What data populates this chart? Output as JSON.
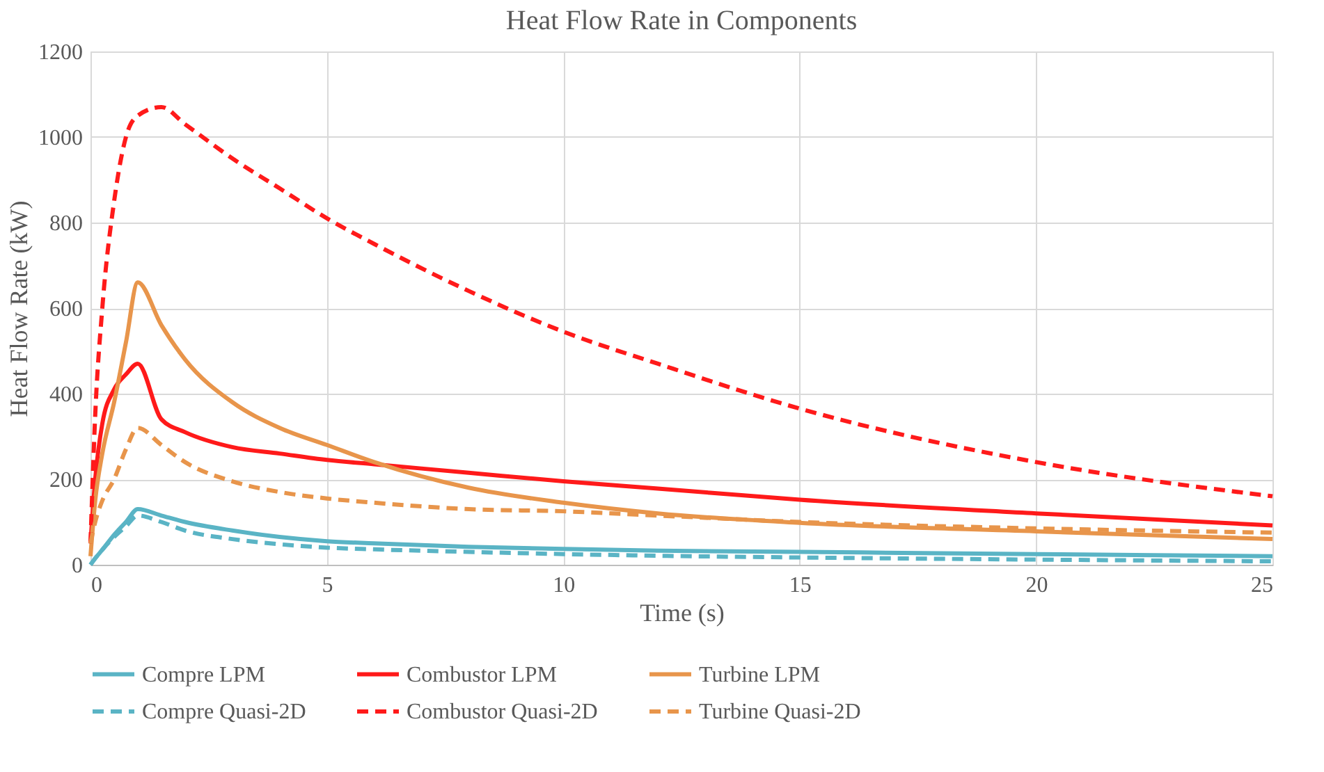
{
  "chart_data": {
    "type": "line",
    "title": "Heat Flow Rate in Components",
    "xlabel": "Time (s)",
    "ylabel": "Heat Flow Rate (kW)",
    "x": [
      0,
      0.1,
      0.25,
      0.5,
      0.75,
      1,
      1.5,
      2,
      3,
      4,
      5,
      6,
      8,
      10,
      12,
      15,
      20,
      25
    ],
    "xlim": [
      0,
      25
    ],
    "xticks": [
      0,
      5,
      10,
      15,
      20,
      25
    ],
    "ylim": [
      0,
      1200
    ],
    "yticks": [
      0,
      200,
      400,
      600,
      800,
      1000,
      1200
    ],
    "grid": true,
    "legend": "bottom",
    "marker": "none",
    "series": [
      {
        "name": "Compre LPM",
        "color": "#5ab4c5",
        "line_style": "solid",
        "values": [
          0,
          15,
          35,
          70,
          100,
          130,
          115,
          100,
          80,
          65,
          55,
          50,
          42,
          37,
          33,
          30,
          25,
          20
        ]
      },
      {
        "name": "Combustor LPM",
        "color": "#ff1a1a",
        "line_style": "solid",
        "values": [
          50,
          200,
          330,
          410,
          445,
          470,
          340,
          310,
          275,
          260,
          245,
          235,
          215,
          195,
          178,
          152,
          120,
          92
        ]
      },
      {
        "name": "Turbine LPM",
        "color": "#e8954b",
        "line_style": "solid",
        "values": [
          20,
          150,
          260,
          380,
          520,
          660,
          560,
          480,
          380,
          320,
          280,
          240,
          180,
          145,
          120,
          98,
          78,
          60
        ]
      },
      {
        "name": "Compre Quasi-2D",
        "color": "#5ab4c5",
        "line_style": "dashed",
        "values": [
          0,
          15,
          35,
          65,
          90,
          115,
          100,
          80,
          60,
          48,
          40,
          36,
          30,
          25,
          21,
          17,
          12,
          8
        ]
      },
      {
        "name": "Combustor Quasi-2D",
        "color": "#ff1a1a",
        "line_style": "dashed",
        "values": [
          50,
          350,
          600,
          850,
          1000,
          1050,
          1070,
          1030,
          950,
          880,
          810,
          750,
          640,
          545,
          470,
          365,
          240,
          160
        ]
      },
      {
        "name": "Turbine Quasi-2D",
        "color": "#e8954b",
        "line_style": "dashed",
        "values": [
          50,
          100,
          150,
          200,
          270,
          320,
          280,
          240,
          195,
          170,
          155,
          145,
          130,
          125,
          115,
          100,
          85,
          75
        ]
      }
    ]
  }
}
